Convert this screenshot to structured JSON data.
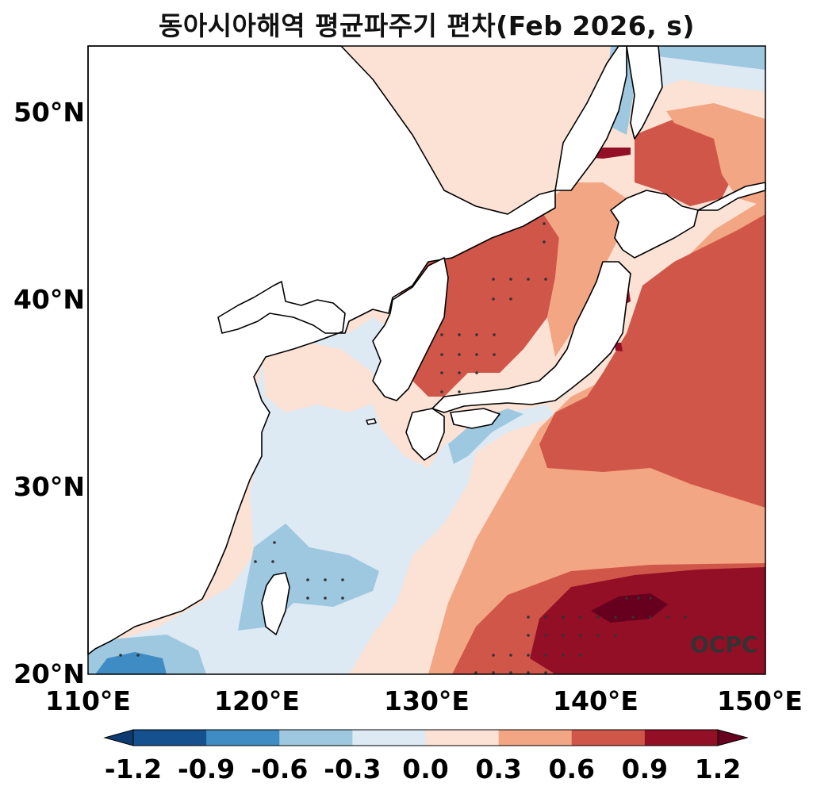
{
  "title": "동아시아해역 평균파주기 편차(Feb 2026, s)",
  "watermark": "OCPC",
  "map": {
    "lon_range": [
      110,
      150
    ],
    "lat_range": [
      20,
      53.5
    ],
    "lat_ticks": [
      {
        "value": 50,
        "label": "50°N"
      },
      {
        "value": 40,
        "label": "40°N"
      },
      {
        "value": 30,
        "label": "30°N"
      },
      {
        "value": 20,
        "label": "20°N"
      }
    ],
    "lon_ticks": [
      {
        "value": 110,
        "label": "110°E"
      },
      {
        "value": 120,
        "label": "120°E"
      },
      {
        "value": 130,
        "label": "130°E"
      },
      {
        "value": 140,
        "label": "140°E"
      },
      {
        "value": 150,
        "label": "150°E"
      }
    ]
  },
  "colorbar": {
    "levels": [
      -1.2,
      -0.9,
      -0.6,
      -0.3,
      0.0,
      0.3,
      0.6,
      0.9,
      1.2
    ],
    "labels": [
      "-1.2",
      "-0.9",
      "-0.6",
      "-0.3",
      "0.0",
      "0.3",
      "0.6",
      "0.9",
      "1.2"
    ],
    "colors": [
      "#0d3a70",
      "#15508f",
      "#3f8bc3",
      "#9ec8e0",
      "#dde9f3",
      "#fbe2d5",
      "#f3a683",
      "#d0564a",
      "#930f26",
      "#67001f"
    ],
    "extend": "both"
  },
  "colors": {
    "land": "#ffffff",
    "coast": "#000000",
    "stipple": "#333333"
  }
}
